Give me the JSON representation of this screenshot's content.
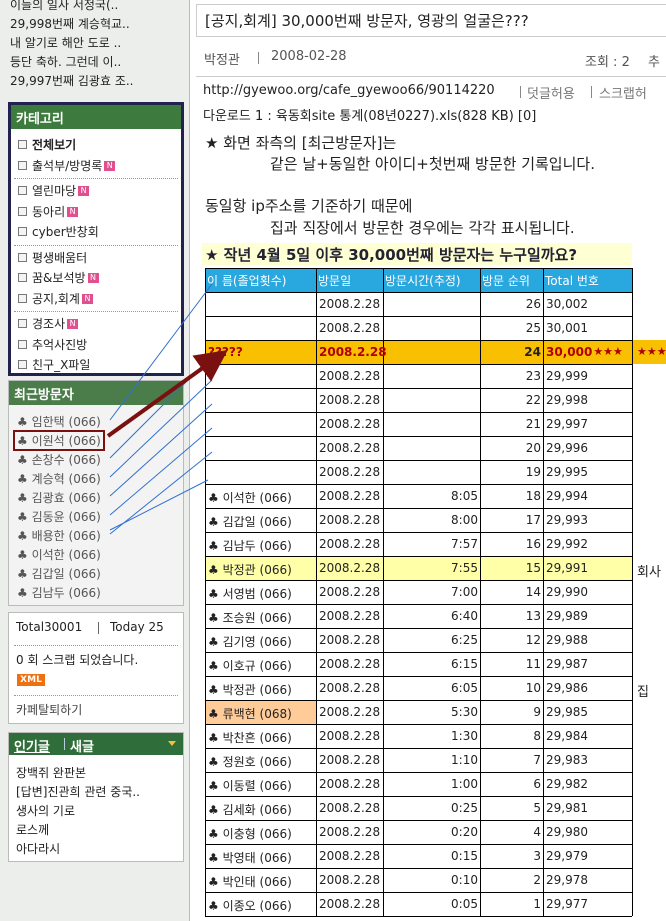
{
  "sidebar": {
    "recent_posts": [
      "이들의 일사 서정국(..",
      "29,998번째 계승혁교..",
      "내 알기로 해안 도로 ..",
      "등단 축하. 그런데 이..",
      "29,997번째 김광효 조.."
    ],
    "category": {
      "title": "카테고리",
      "new_badge": "N",
      "groups": [
        [
          {
            "label": "전체보기"
          },
          {
            "label": "출석부/방명록",
            "new": true
          }
        ],
        [
          {
            "label": "열린마당",
            "new": true
          },
          {
            "label": "동아리",
            "new": true
          },
          {
            "label": "cyber반창회"
          }
        ],
        [
          {
            "label": "평생배움터"
          },
          {
            "label": "꿈&보석방",
            "new": true
          },
          {
            "label": "공지,회계",
            "new": true
          }
        ],
        [
          {
            "label": "경조사",
            "new": true
          },
          {
            "label": "추억사진방"
          },
          {
            "label": "친구_X파일"
          }
        ]
      ]
    },
    "visitors": {
      "title": "최근방문자",
      "items": [
        "♣ 임한택 (066)",
        "♣ 이원석 (066)",
        "♣ 손창수 (066)",
        "♣ 계승혁 (066)",
        "♣ 김광효 (066)",
        "♣ 김동윤 (066)",
        "♣ 배용한 (066)",
        "♣ 이석한 (066)",
        "♣ 김갑일 (066)",
        "♣ 김남두 (066)"
      ]
    },
    "stats": {
      "total": "Total30001",
      "today": "Today 25",
      "scrap": "0 회 스크랩 되었습니다.",
      "xml": "XML",
      "leave": "카페탈퇴하기"
    },
    "popular": {
      "tabs": [
        "인기글",
        "새글"
      ],
      "items": [
        "장백쥐 완판본",
        "[답변]진관희 관련 중국..",
        "생사의 기로",
        "로스께",
        "아다라시"
      ]
    }
  },
  "article": {
    "title": "[공지,회계] 30,000번째 방문자, 영광의 얼굴은???",
    "author": "박정관",
    "date": "2008-02-28",
    "views": "조회 : 2",
    "views_cut": "추",
    "url": "http://gyewoo.org/cafe_gyewoo66/90114220",
    "links": [
      "덧글허용",
      "스크랩허"
    ],
    "download": "다운로드 1 : 육동회site 통계(08년0227).xls(828 KB) [0]",
    "body": [
      "★ 화면 좌측의 [최근방문자]는",
      "같은 날+동일한 아이디+첫번째 방문한 기록입니다.",
      "동일항 ip주소를 기준하기 때문에",
      "집과 직장에서 방문한 경우에는 각각 표시됩니다."
    ],
    "question": "★ 작년 4월 5일 이후 30,000번째 방문자는 누구일까요?",
    "table": {
      "headers": [
        "이 름(졸업횟수)",
        "방문일",
        "방문시간(추정)",
        "방문 순위",
        "Total 번호"
      ],
      "rows": [
        [
          null,
          "2008.2.28",
          null,
          "26",
          "30,002"
        ],
        [
          null,
          "2008.2.28",
          null,
          "25",
          "30,001"
        ],
        [
          "?????",
          "2008.2.28",
          null,
          "24",
          "30,000"
        ],
        [
          null,
          "2008.2.28",
          null,
          "23",
          "29,999"
        ],
        [
          null,
          "2008.2.28",
          null,
          "22",
          "29,998"
        ],
        [
          null,
          "2008.2.28",
          null,
          "21",
          "29,997"
        ],
        [
          null,
          "2008.2.28",
          null,
          "20",
          "29,996"
        ],
        [
          null,
          "2008.2.28",
          null,
          "19",
          "29,995"
        ],
        [
          "♣ 이석한 (066)",
          "2008.2.28",
          "8:05",
          "18",
          "29,994"
        ],
        [
          "♣ 김갑일 (066)",
          "2008.2.28",
          "8:00",
          "17",
          "29,993"
        ],
        [
          "♣ 김남두 (066)",
          "2008.2.28",
          "7:57",
          "16",
          "29,992"
        ],
        [
          "♣ 박정관 (066)",
          "2008.2.28",
          "7:55",
          "15",
          "29,991"
        ],
        [
          "♣ 서영범 (066)",
          "2008.2.28",
          "7:00",
          "14",
          "29,990"
        ],
        [
          "♣ 조승원 (066)",
          "2008.2.28",
          "6:40",
          "13",
          "29,989"
        ],
        [
          "♣ 김기영 (066)",
          "2008.2.28",
          "6:25",
          "12",
          "29,988"
        ],
        [
          "♣ 이호규 (066)",
          "2008.2.28",
          "6:15",
          "11",
          "29,987"
        ],
        [
          "♣ 박정관 (066)",
          "2008.2.28",
          "6:05",
          "10",
          "29,986"
        ],
        [
          "♣ 류백현 (068)",
          "2008.2.28",
          "5:30",
          "9",
          "29,985"
        ],
        [
          "♣ 박찬흔 (066)",
          "2008.2.28",
          "1:30",
          "8",
          "29,984"
        ],
        [
          "♣ 정원호 (066)",
          "2008.2.28",
          "1:10",
          "7",
          "29,983"
        ],
        [
          "♣ 이동렬 (066)",
          "2008.2.28",
          "1:00",
          "6",
          "29,982"
        ],
        [
          "♣ 김세화 (066)",
          "2008.2.28",
          "0:25",
          "5",
          "29,981"
        ],
        [
          "♣ 이충형 (066)",
          "2008.2.28",
          "0:20",
          "4",
          "29,980"
        ],
        [
          "♣ 박영태 (066)",
          "2008.2.28",
          "0:15",
          "3",
          "29,979"
        ],
        [
          "♣ 박인태 (066)",
          "2008.2.28",
          "0:10",
          "2",
          "29,978"
        ],
        [
          "♣ 이종오 (066)",
          "2008.2.28",
          "0:05",
          "1",
          "29,977"
        ]
      ],
      "side_notes": {
        "2": "★★★",
        "11": "회사",
        "16": "집"
      }
    }
  }
}
